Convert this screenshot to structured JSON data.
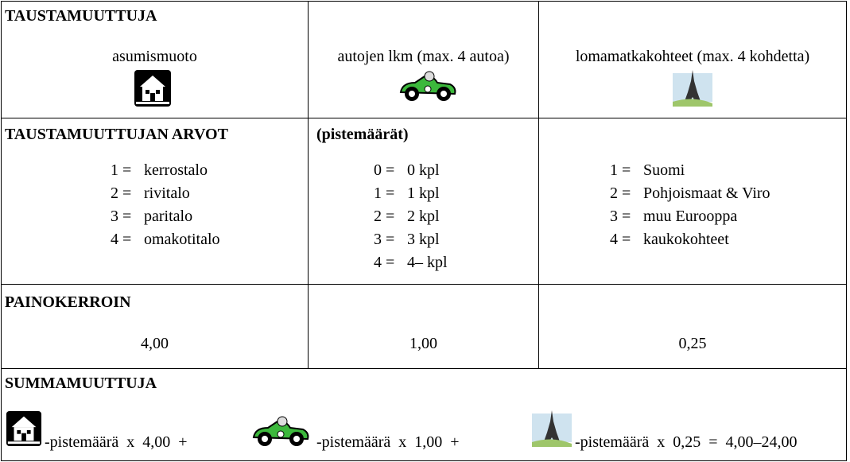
{
  "header": {
    "title": "TAUSTAMUUTTUJA",
    "columns": [
      "asumismuoto",
      "autojen lkm (max. 4 autoa)",
      "lomamatkakohteet (max. 4 kohdetta)"
    ]
  },
  "values": {
    "title": "TAUSTAMUUTTUJAN ARVOT",
    "subtitle": "(pistemäärät)",
    "lists": [
      [
        {
          "code": "1 =",
          "label": "kerrostalo"
        },
        {
          "code": "2 =",
          "label": "rivitalo"
        },
        {
          "code": "3 =",
          "label": "paritalo"
        },
        {
          "code": "4 =",
          "label": "omakotitalo"
        }
      ],
      [
        {
          "code": "0 =",
          "label": "0 kpl"
        },
        {
          "code": "1 =",
          "label": "1 kpl"
        },
        {
          "code": "2 =",
          "label": "2 kpl"
        },
        {
          "code": "3 =",
          "label": "3 kpl"
        },
        {
          "code": "4 =",
          "label": "4– kpl"
        }
      ],
      [
        {
          "code": "1 =",
          "label": "Suomi"
        },
        {
          "code": "2 =",
          "label": "Pohjoismaat & Viro"
        },
        {
          "code": "3 =",
          "label": "muu Eurooppa"
        },
        {
          "code": "4 =",
          "label": "kaukokohteet"
        }
      ]
    ]
  },
  "weights": {
    "title": "PAINOKERROIN",
    "values": [
      "4,00",
      "1,00",
      "0,25"
    ]
  },
  "sum": {
    "title": "SUMMAMUUTTUJA",
    "parts": [
      "-pistemäärä  x  4,00  +",
      "-pistemäärä  x  1,00  +",
      "-pistemäärä  x  0,25  =  4,00–24,00"
    ]
  }
}
